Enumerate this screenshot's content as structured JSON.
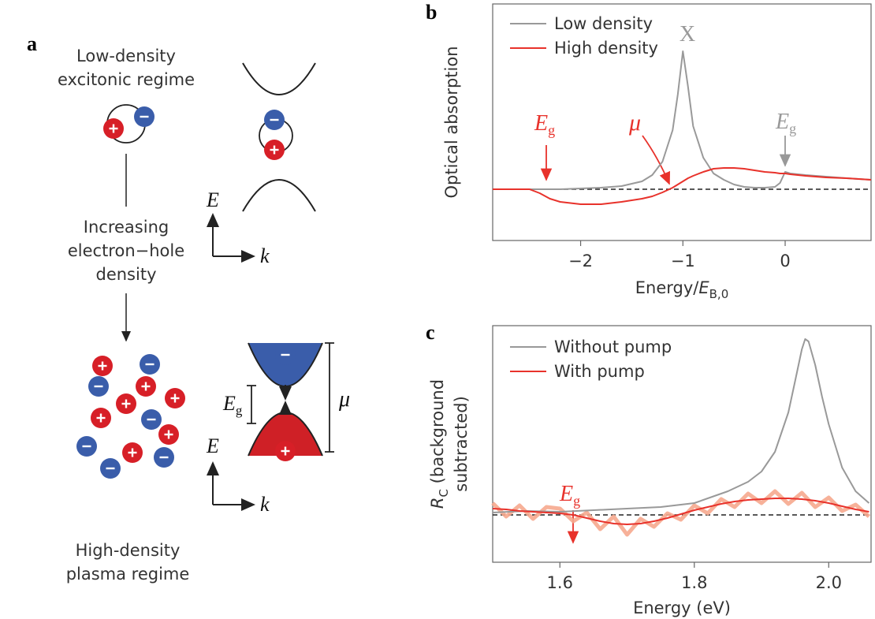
{
  "panel_labels": [
    "a",
    "b",
    "c"
  ],
  "panel_a": {
    "low_density": [
      "Low-density",
      "excitonic regime"
    ],
    "increasing": [
      "Increasing",
      "electron−hole",
      "density"
    ],
    "high_density": [
      "High-density",
      "plasma regime"
    ],
    "axis_e": "E",
    "axis_k": "k",
    "gap_label": {
      "text": "E",
      "sub": "g"
    },
    "mu_label": "μ"
  },
  "chart_data": [
    {
      "type": "line",
      "xlabel": [
        "Energy/",
        "E",
        "B,0"
      ],
      "ylabel": "Optical absorption",
      "x": [
        -2.86,
        -2.6,
        -2.5,
        -2.4,
        -2.3,
        -2.2,
        -2.0,
        -1.8,
        -1.6,
        -1.4,
        -1.3,
        -1.2,
        -1.1,
        -1.05,
        -1.0,
        -0.95,
        -0.9,
        -0.8,
        -0.7,
        -0.6,
        -0.5,
        -0.4,
        -0.3,
        -0.2,
        -0.1,
        -0.05,
        0,
        0.05,
        0.2,
        0.4,
        0.6,
        0.84
      ],
      "series": [
        {
          "name": "Low density",
          "color": "#999999",
          "values": [
            0,
            0,
            0,
            0,
            0,
            0,
            0.01,
            0.02,
            0.04,
            0.1,
            0.18,
            0.35,
            0.75,
            1.2,
            1.75,
            1.3,
            0.8,
            0.4,
            0.2,
            0.12,
            0.06,
            0.03,
            0.02,
            0.02,
            0.03,
            0.08,
            0.22,
            0.2,
            0.18,
            0.16,
            0.14,
            0.12
          ]
        },
        {
          "name": "High density",
          "color": "#e8322b",
          "values": [
            0,
            0,
            0,
            -0.05,
            -0.12,
            -0.16,
            -0.19,
            -0.19,
            -0.16,
            -0.12,
            -0.09,
            -0.04,
            0.02,
            0.06,
            0.1,
            0.14,
            0.17,
            0.22,
            0.26,
            0.27,
            0.27,
            0.26,
            0.24,
            0.22,
            0.21,
            0.2,
            0.2,
            0.19,
            0.17,
            0.15,
            0.14,
            0.12
          ]
        }
      ],
      "xlim": [
        -2.86,
        0.84
      ],
      "ylim": [
        -0.65,
        2.35
      ],
      "xticks": [
        {
          "value": -2,
          "label": "−2"
        },
        {
          "value": -1,
          "label": "−1"
        },
        0
      ],
      "baseline": 0,
      "annotations": [
        {
          "text": "X",
          "color": "#999999"
        },
        {
          "text": "E",
          "sub": "g",
          "color": "#e8322b"
        },
        {
          "text": "μ",
          "color": "#e8322b"
        },
        {
          "text": "E",
          "sub": "g",
          "color": "#999999"
        }
      ]
    },
    {
      "type": "line",
      "xlabel": [
        "Energy (eV)"
      ],
      "ylabel": [
        "R",
        "C",
        " (background",
        "subtracted)"
      ],
      "x": [
        1.5,
        1.52,
        1.54,
        1.56,
        1.58,
        1.6,
        1.62,
        1.64,
        1.66,
        1.68,
        1.7,
        1.72,
        1.74,
        1.76,
        1.78,
        1.8,
        1.82,
        1.84,
        1.86,
        1.88,
        1.9,
        1.92,
        1.94,
        1.96,
        1.98,
        2.0,
        2.02,
        2.04,
        2.06
      ],
      "series": [
        {
          "color": "#f6a98e",
          "values": [
            0.15,
            -0.02,
            0.12,
            -0.05,
            0.1,
            0.08,
            -0.08,
            0.03,
            -0.18,
            -0.02,
            -0.25,
            -0.05,
            -0.15,
            0.02,
            -0.06,
            0.12,
            0.02,
            0.2,
            0.1,
            0.27,
            0.15,
            0.3,
            0.14,
            0.28,
            0.1,
            0.22,
            0.05,
            0.13,
            -0.02
          ]
        },
        {
          "name": "Without pump",
          "color": "#999999",
          "x": [
            1.5,
            1.55,
            1.6,
            1.65,
            1.7,
            1.75,
            1.8,
            1.85,
            1.88,
            1.9,
            1.92,
            1.94,
            1.95,
            1.96,
            1.965,
            1.97,
            1.98,
            1.99,
            2.0,
            2.02,
            2.04,
            2.06
          ],
          "values": [
            0.03,
            0.05,
            0.04,
            0.06,
            0.08,
            0.1,
            0.15,
            0.3,
            0.42,
            0.55,
            0.8,
            1.3,
            1.7,
            2.1,
            2.23,
            2.2,
            1.9,
            1.5,
            1.15,
            0.6,
            0.3,
            0.15
          ]
        },
        {
          "name": "With pump",
          "color": "#e8322b",
          "values": [
            0.08,
            0.07,
            0.05,
            0.04,
            0.03,
            0.02,
            0,
            -0.04,
            -0.08,
            -0.11,
            -0.12,
            -0.11,
            -0.08,
            -0.04,
            0.01,
            0.06,
            0.1,
            0.14,
            0.17,
            0.19,
            0.2,
            0.21,
            0.21,
            0.2,
            0.18,
            0.15,
            0.11,
            0.07,
            0.04
          ]
        }
      ],
      "xlim": [
        1.5,
        2.063
      ],
      "ylim": [
        -0.6,
        2.4
      ],
      "xticks": [
        1.6,
        1.8,
        {
          "value": 2.0,
          "label": "2.0"
        }
      ],
      "baseline": 0,
      "annotations": [
        {
          "text": "E",
          "sub": "g",
          "color": "#e8322b"
        }
      ]
    }
  ]
}
